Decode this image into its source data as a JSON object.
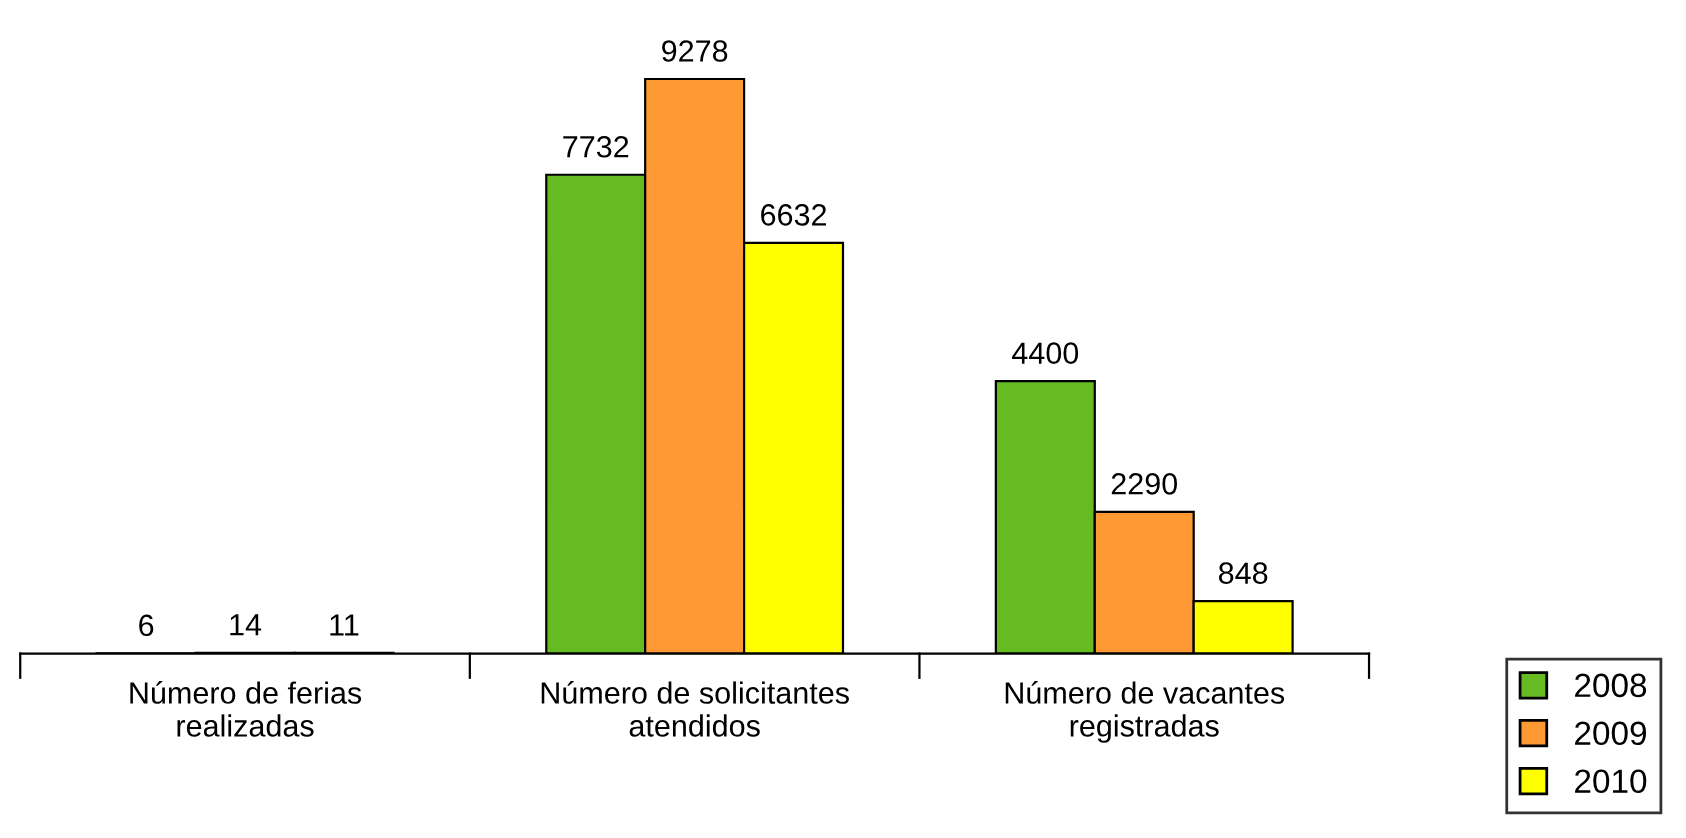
{
  "chart_data": {
    "type": "bar",
    "categories": [
      "Número de ferias\nrealizadas",
      "Número de solicitantes\natendidos",
      "Número de vacantes\nregistradas"
    ],
    "series": [
      {
        "name": "2008",
        "color": "#66bb22",
        "values": [
          6,
          7732,
          4400
        ]
      },
      {
        "name": "2009",
        "color": "#ff9933",
        "values": [
          14,
          9278,
          2290
        ]
      },
      {
        "name": "2010",
        "color": "#ffff00",
        "values": [
          11,
          6632,
          848
        ]
      }
    ],
    "data_labels": true,
    "legend": "bottom right",
    "grid": false
  }
}
